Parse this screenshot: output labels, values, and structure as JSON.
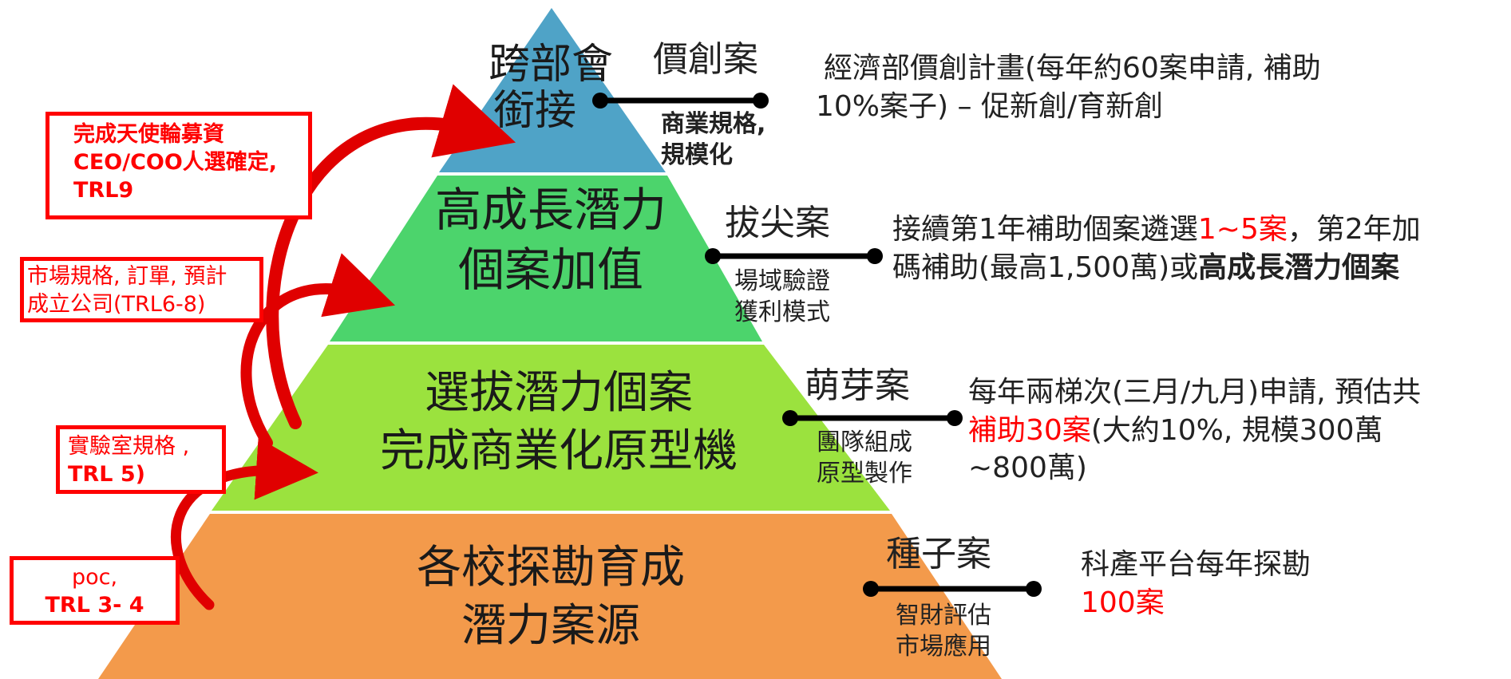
{
  "colors": {
    "tier_top": "#4FA3C7",
    "tier_second": "#4CD46C",
    "tier_third": "#9BE23E",
    "tier_bottom": "#F39A4B",
    "arrow_red": "#E00000",
    "connector": "#000000",
    "highlight_red": "#FF0000"
  },
  "tiers": [
    {
      "line1": "跨部會",
      "line2": "銜接"
    },
    {
      "line1": "高成長潛力",
      "line2": "個案加值"
    },
    {
      "line1": "選拔潛力個案",
      "line2": "完成商業化原型機"
    },
    {
      "line1": "各校探勘育成",
      "line2": "潛力案源"
    }
  ],
  "programs": [
    {
      "tag": "價創案",
      "sub1": "商業規格,",
      "sub2": "規模化",
      "desc1": "經濟部價創計畫(每年約60案申請, 補助",
      "desc2": "10%案子) – 促新創/育新創"
    },
    {
      "tag": "拔尖案",
      "sub1": "場域驗證",
      "sub2": "獲利模式",
      "desc1_a": "接續第1年補助個案遴選",
      "desc1_red": "1~5案",
      "desc1_b": "，第2年加",
      "desc2_a": "碼補助(最高1,500萬)或",
      "desc2_bold": "高成長潛力個案"
    },
    {
      "tag": "萌芽案",
      "sub1": "團隊組成",
      "sub2": "原型製作",
      "desc1": "每年兩梯次(三月/九月)申請, 預估共",
      "desc2_red": "補助30案",
      "desc2_b": "(大約10%, 規模300萬",
      "desc3": "~800萬)"
    },
    {
      "tag": "種子案",
      "sub1": "智財評估",
      "sub2": "市場應用",
      "desc1": "科產平台每年探勘",
      "desc2_red": "100案"
    }
  ],
  "trl_boxes": [
    {
      "line1": "完成天使輪募資",
      "line2": "CEO/COO人選確定,",
      "line3": "TRL9"
    },
    {
      "line1": "市場規格, 訂單, 預計",
      "line2": "成立公司(TRL6-8)"
    },
    {
      "line1": "實驗室規格 ,",
      "line2": "TRL 5)"
    },
    {
      "line1": "poc,",
      "line2": "TRL 3- 4"
    }
  ]
}
